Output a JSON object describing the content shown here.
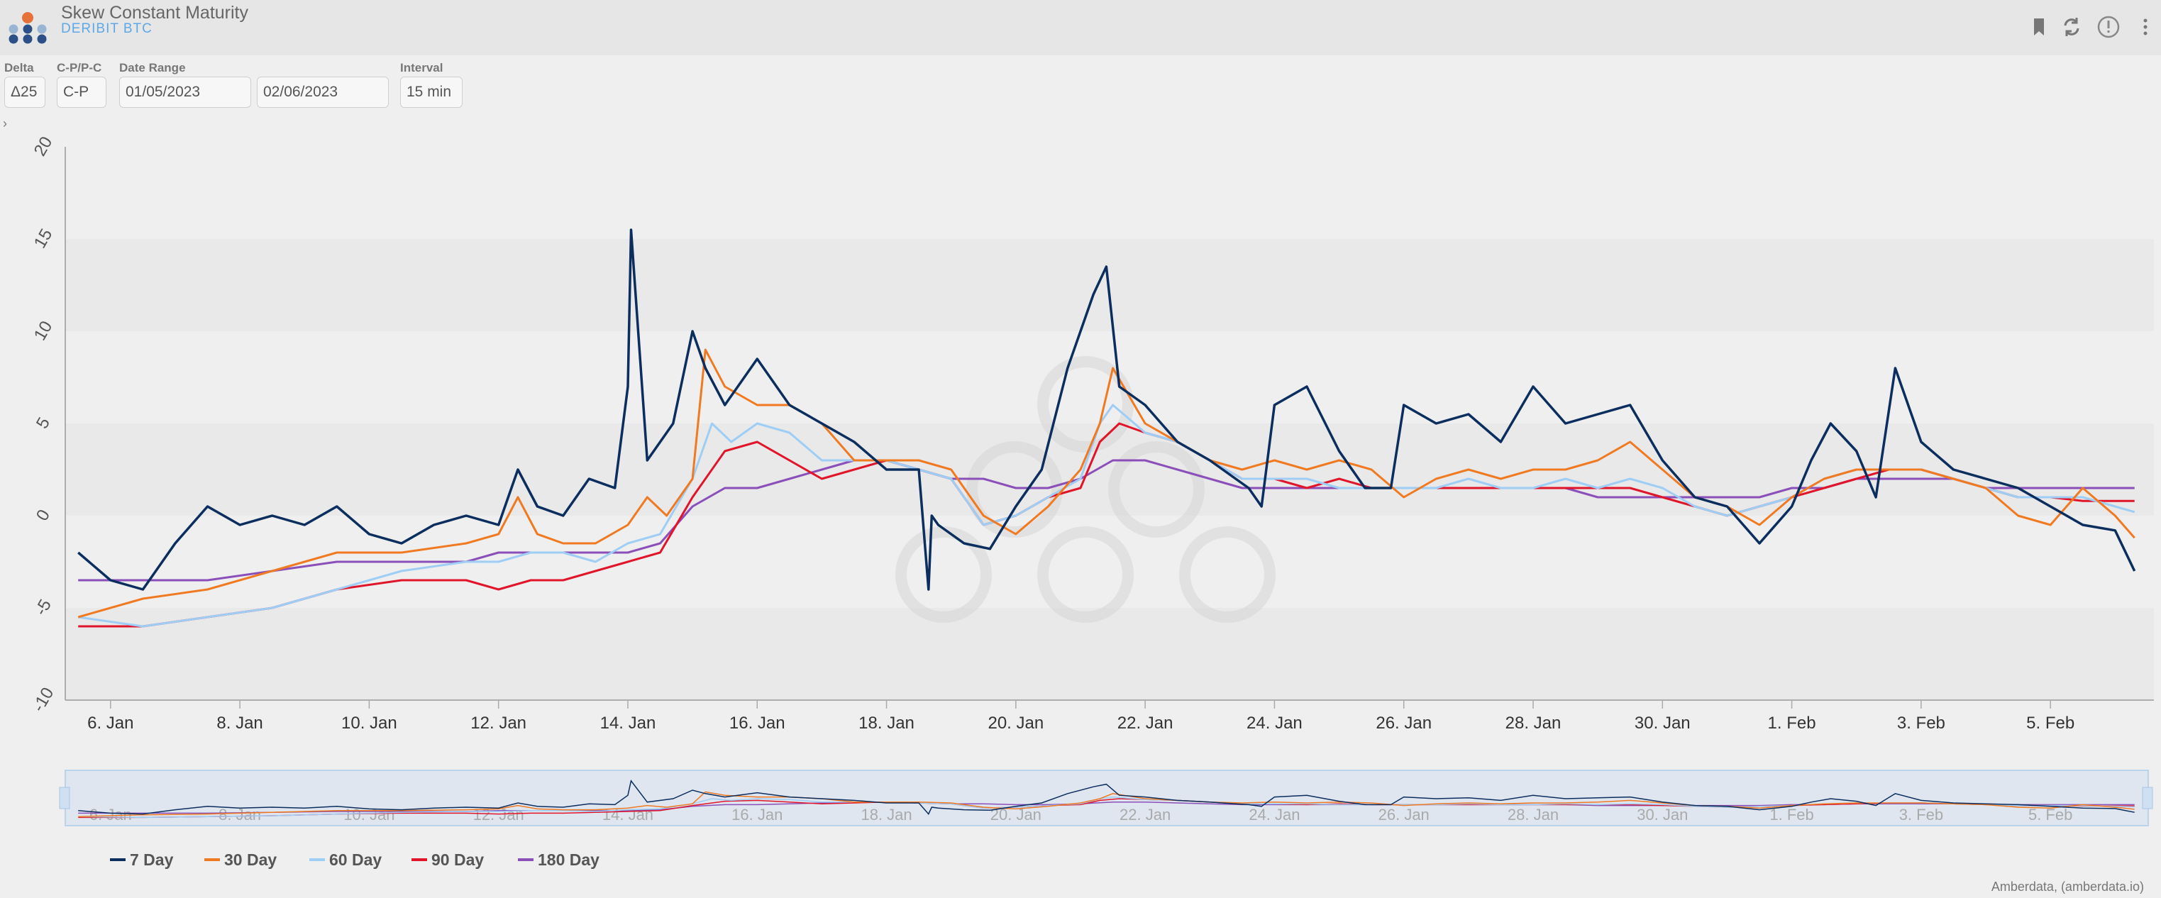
{
  "header": {
    "title": "Skew Constant Maturity",
    "subtitle": "DERIBIT BTC",
    "icons": [
      "bookmark-icon",
      "refresh-icon",
      "info-icon",
      "more-icon"
    ]
  },
  "controls": {
    "delta_label": "Delta",
    "delta_value": "Δ25",
    "cp_label": "C-P/P-C",
    "cp_value": "C-P",
    "date_label": "Date Range",
    "date_from": "01/05/2023",
    "date_to": "02/06/2023",
    "interval_label": "Interval",
    "interval_value": "15 min"
  },
  "credit": "Amberdata, (amberdata.io)",
  "chart_data": {
    "type": "line",
    "ylim": [
      -10,
      20
    ],
    "yticks": [
      -10,
      -5,
      0,
      5,
      10,
      15,
      20
    ],
    "xlim": [
      5.3,
      37.6
    ],
    "x_ticks": [
      {
        "x": 6,
        "label": "6. Jan"
      },
      {
        "x": 8,
        "label": "8. Jan"
      },
      {
        "x": 10,
        "label": "10. Jan"
      },
      {
        "x": 12,
        "label": "12. Jan"
      },
      {
        "x": 14,
        "label": "14. Jan"
      },
      {
        "x": 16,
        "label": "16. Jan"
      },
      {
        "x": 18,
        "label": "18. Jan"
      },
      {
        "x": 20,
        "label": "20. Jan"
      },
      {
        "x": 22,
        "label": "22. Jan"
      },
      {
        "x": 24,
        "label": "24. Jan"
      },
      {
        "x": 26,
        "label": "26. Jan"
      },
      {
        "x": 28,
        "label": "28. Jan"
      },
      {
        "x": 30,
        "label": "30. Jan"
      },
      {
        "x": 32,
        "label": "1. Feb"
      },
      {
        "x": 34,
        "label": "3. Feb"
      },
      {
        "x": 36,
        "label": "5. Feb"
      }
    ],
    "legend_position": "bottom-left",
    "series": [
      {
        "name": "7 Day",
        "color": "#0b2e5e",
        "x": [
          5.5,
          6,
          6.5,
          7,
          7.5,
          8,
          8.5,
          9,
          9.5,
          10,
          10.5,
          11,
          11.5,
          12,
          12.3,
          12.6,
          13,
          13.4,
          13.8,
          14,
          14.05,
          14.3,
          14.7,
          15,
          15.2,
          15.5,
          16,
          16.5,
          17,
          17.5,
          18,
          18.5,
          18.65,
          18.7,
          18.8,
          19.2,
          19.6,
          20,
          20.4,
          20.8,
          21.2,
          21.4,
          21.6,
          22,
          22.5,
          23,
          23.4,
          23.6,
          23.8,
          24,
          24.5,
          25,
          25.4,
          25.8,
          26,
          26.5,
          27,
          27.5,
          28,
          28.5,
          29,
          29.5,
          30,
          30.5,
          31,
          31.5,
          32,
          32.3,
          32.6,
          33,
          33.3,
          33.6,
          34,
          34.5,
          35,
          35.5,
          36,
          36.5,
          37,
          37.3
        ],
        "y": [
          -2,
          -3.5,
          -4,
          -1.5,
          0.5,
          -0.5,
          0,
          -0.5,
          0.5,
          -1,
          -1.5,
          -0.5,
          0,
          -0.5,
          2.5,
          0.5,
          0,
          2,
          1.5,
          7,
          15.5,
          3,
          5,
          10,
          8,
          6,
          8.5,
          6,
          5,
          4,
          2.5,
          2.5,
          -4,
          0,
          -0.5,
          -1.5,
          -1.8,
          0.5,
          2.5,
          8,
          12,
          13.5,
          7,
          6,
          4,
          3,
          2,
          1.5,
          0.5,
          6,
          7,
          3.5,
          1.5,
          1.5,
          6,
          5,
          5.5,
          4,
          7,
          5,
          5.5,
          6,
          3,
          1,
          0.5,
          -1.5,
          0.5,
          3,
          5,
          3.5,
          1,
          8,
          4,
          2.5,
          2,
          1.5,
          0.5,
          -0.5,
          -0.8,
          -3
        ]
      },
      {
        "name": "30 Day",
        "color": "#f07a22",
        "x": [
          5.5,
          6.5,
          7.5,
          8.5,
          9.5,
          10.5,
          11.5,
          12,
          12.3,
          12.6,
          13,
          13.5,
          14,
          14.3,
          14.6,
          15,
          15.2,
          15.5,
          16,
          16.5,
          17,
          17.5,
          18,
          18.5,
          19,
          19.5,
          20,
          20.5,
          21,
          21.3,
          21.5,
          22,
          22.5,
          23,
          23.5,
          24,
          24.5,
          25,
          25.5,
          26,
          26.5,
          27,
          27.5,
          28,
          28.5,
          29,
          29.5,
          30,
          30.5,
          31,
          31.5,
          32,
          32.5,
          33,
          33.5,
          34,
          34.5,
          35,
          35.5,
          36,
          36.5,
          37,
          37.3
        ],
        "y": [
          -5.5,
          -4.5,
          -4,
          -3,
          -2,
          -2,
          -1.5,
          -1,
          1,
          -1,
          -1.5,
          -1.5,
          -0.5,
          1,
          0,
          2,
          9,
          7,
          6,
          6,
          5,
          3,
          3,
          3,
          2.5,
          0,
          -1,
          0.5,
          2.5,
          5,
          8,
          5,
          4,
          3,
          2.5,
          3,
          2.5,
          3,
          2.5,
          1,
          2,
          2.5,
          2,
          2.5,
          2.5,
          3,
          4,
          2.5,
          1,
          0.5,
          -0.5,
          1,
          2,
          2.5,
          2.5,
          2.5,
          2,
          1.5,
          0,
          -0.5,
          1.5,
          0,
          -1.2
        ]
      },
      {
        "name": "60 Day",
        "color": "#9ecdf5",
        "x": [
          5.5,
          6.5,
          7.5,
          8.5,
          9.5,
          10.5,
          11.5,
          12,
          12.5,
          13,
          13.5,
          14,
          14.5,
          15,
          15.3,
          15.6,
          16,
          16.5,
          17,
          17.5,
          18,
          18.5,
          19,
          19.5,
          20,
          20.5,
          21,
          21.3,
          21.5,
          22,
          22.5,
          23,
          23.5,
          24,
          24.5,
          25,
          25.5,
          26,
          26.5,
          27,
          27.5,
          28,
          28.5,
          29,
          29.5,
          30,
          30.5,
          31,
          31.5,
          32,
          32.5,
          33,
          33.5,
          34,
          34.5,
          35,
          35.5,
          36,
          36.5,
          37,
          37.3
        ],
        "y": [
          -5.5,
          -6,
          -5.5,
          -5,
          -4,
          -3,
          -2.5,
          -2.5,
          -2,
          -2,
          -2.5,
          -1.5,
          -1,
          2,
          5,
          4,
          5,
          4.5,
          3,
          3,
          3,
          2.5,
          2,
          -0.5,
          0,
          1,
          2,
          5,
          6,
          4.5,
          4,
          3,
          2,
          2,
          2,
          1.5,
          1.5,
          1.5,
          1.5,
          2,
          1.5,
          1.5,
          2,
          1.5,
          2,
          1.5,
          0.5,
          0,
          0.5,
          1,
          2,
          2.5,
          2.5,
          2.5,
          2,
          1.5,
          1,
          1,
          1,
          0.5,
          0.2
        ]
      },
      {
        "name": "90 Day",
        "color": "#e0152a",
        "x": [
          5.5,
          6.5,
          7.5,
          8.5,
          9.5,
          10.5,
          11.5,
          12,
          12.5,
          13,
          13.5,
          14,
          14.5,
          15,
          15.5,
          16,
          16.5,
          17,
          17.5,
          18,
          18.5,
          19,
          19.5,
          20,
          20.5,
          21,
          21.3,
          21.6,
          22,
          22.5,
          23,
          23.5,
          24,
          24.5,
          25,
          25.5,
          26,
          26.5,
          27,
          27.5,
          28,
          28.5,
          29,
          29.5,
          30,
          30.5,
          31,
          31.5,
          32,
          32.5,
          33,
          33.5,
          34,
          34.5,
          35,
          35.5,
          36,
          36.5,
          37,
          37.3
        ],
        "y": [
          -6,
          -6,
          -5.5,
          -5,
          -4,
          -3.5,
          -3.5,
          -4,
          -3.5,
          -3.5,
          -3,
          -2.5,
          -2,
          1,
          3.5,
          4,
          3,
          2,
          2.5,
          3,
          2.5,
          2,
          -0.5,
          0,
          1,
          1.5,
          4,
          5,
          4.5,
          4,
          3,
          2,
          2,
          1.5,
          2,
          1.5,
          1.5,
          1.5,
          1.5,
          1.5,
          1.5,
          1.5,
          1.5,
          1.5,
          1,
          0.5,
          0,
          0.5,
          1,
          1.5,
          2,
          2.5,
          2.5,
          2,
          1.5,
          1,
          1,
          0.8,
          0.8,
          0.8
        ]
      },
      {
        "name": "180 Day",
        "color": "#8a4fb8",
        "x": [
          5.5,
          6.5,
          7.5,
          8.5,
          9.5,
          10.5,
          11.5,
          12,
          12.5,
          13,
          13.5,
          14,
          14.5,
          15,
          15.5,
          16,
          16.5,
          17,
          17.5,
          18,
          18.5,
          19,
          19.5,
          20,
          20.5,
          21,
          21.5,
          22,
          22.5,
          23,
          23.5,
          24,
          24.5,
          25,
          25.5,
          26,
          26.5,
          27,
          27.5,
          28,
          28.5,
          29,
          29.5,
          30,
          30.5,
          31,
          31.5,
          32,
          32.5,
          33,
          33.5,
          34,
          34.5,
          35,
          35.5,
          36,
          36.5,
          37,
          37.3
        ],
        "y": [
          -3.5,
          -3.5,
          -3.5,
          -3,
          -2.5,
          -2.5,
          -2.5,
          -2,
          -2,
          -2,
          -2,
          -2,
          -1.5,
          0.5,
          1.5,
          1.5,
          2,
          2.5,
          3,
          3,
          2.5,
          2,
          2,
          1.5,
          1.5,
          2,
          3,
          3,
          2.5,
          2,
          1.5,
          1.5,
          1.5,
          1.5,
          1.5,
          1.5,
          1.5,
          1.5,
          1.5,
          1.5,
          1.5,
          1,
          1,
          1,
          1,
          1,
          1,
          1.5,
          1.5,
          2,
          2,
          2,
          2,
          1.5,
          1.5,
          1.5,
          1.5,
          1.5,
          1.5
        ]
      }
    ]
  }
}
